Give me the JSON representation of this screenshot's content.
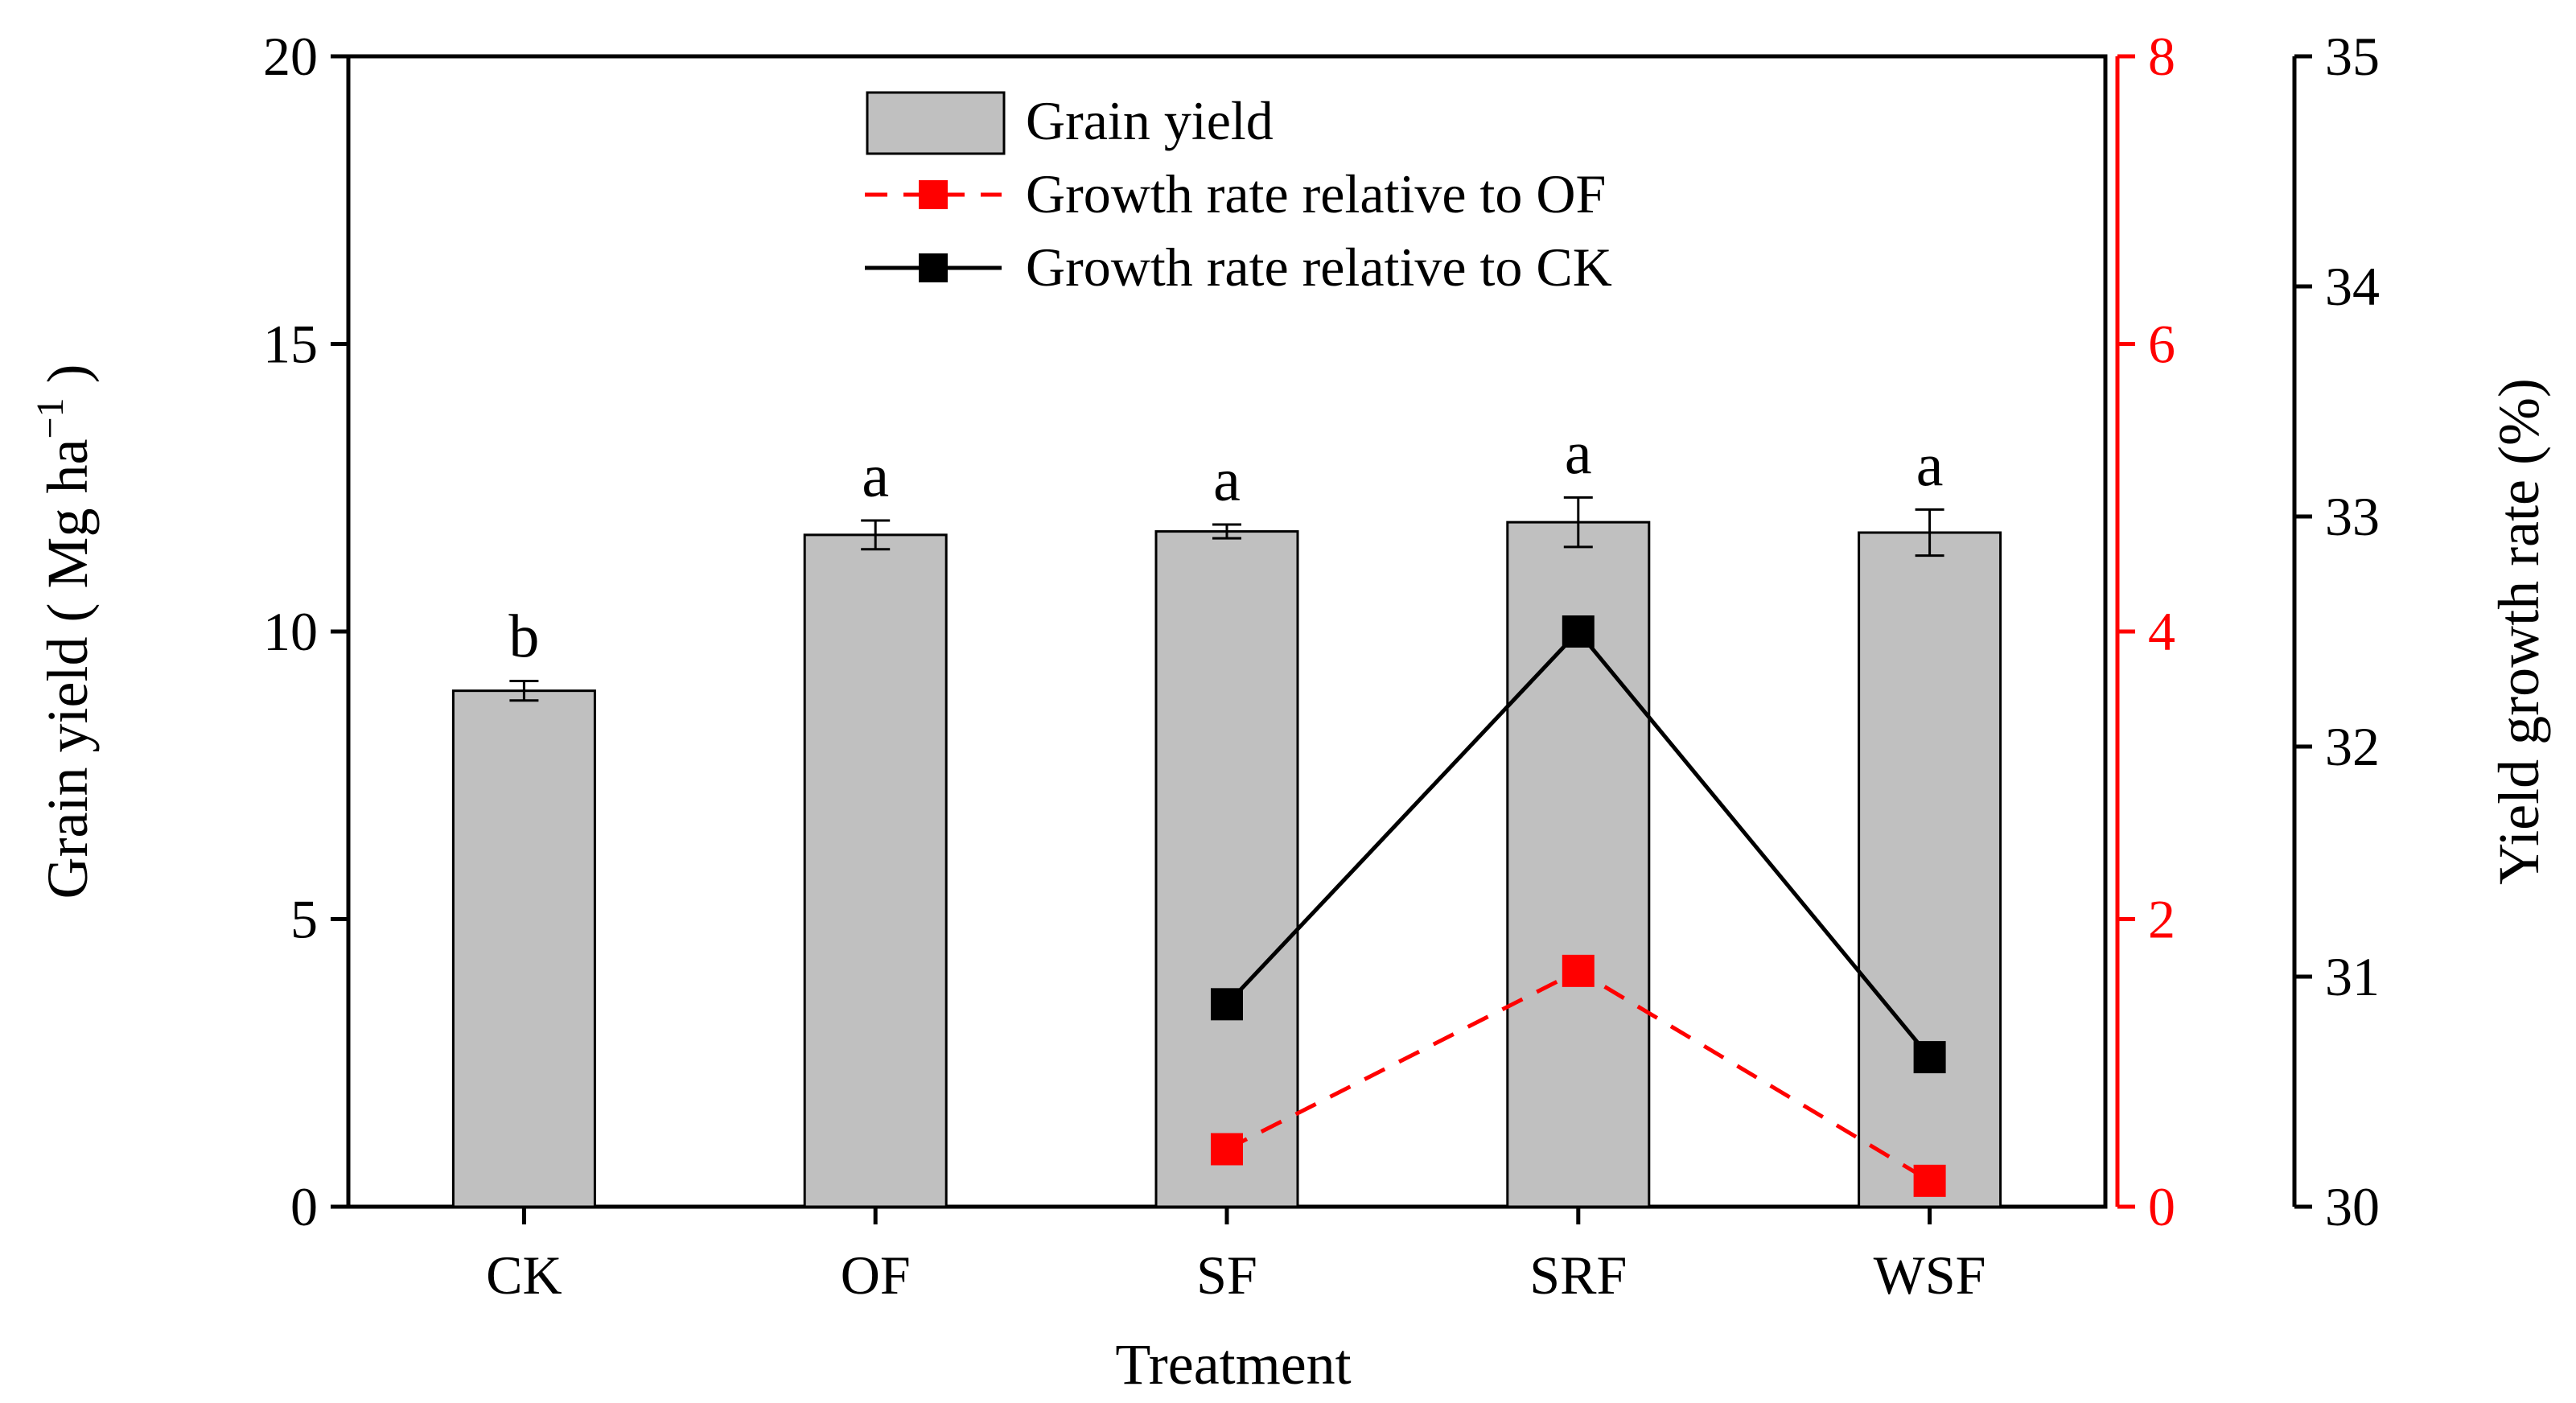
{
  "chart_data": {
    "type": "bar",
    "categories": [
      "CK",
      "OF",
      "SF",
      "SRF",
      "WSF"
    ],
    "xlabel": "Treatment",
    "bars": {
      "name": "Grain yield",
      "values": [
        8.97,
        11.68,
        11.74,
        11.9,
        11.72
      ],
      "errors": [
        0.17,
        0.25,
        0.12,
        0.43,
        0.4
      ],
      "significance": [
        "b",
        "a",
        "a",
        "a",
        "a"
      ],
      "color": "#c0c0c0"
    },
    "series": [
      {
        "name": "Growth rate relative to OF",
        "axis": "red-right",
        "values": [
          null,
          null,
          0.4,
          1.64,
          0.18
        ],
        "color": "#ff0000",
        "style": "dashed"
      },
      {
        "name": "Growth rate relative to CK",
        "axis": "black-right",
        "values": [
          null,
          null,
          30.88,
          32.5,
          30.65
        ],
        "color": "#000000",
        "style": "solid"
      }
    ],
    "left_axis": {
      "label_main": "Grain yield ( Mg ha",
      "label_sup": "−1",
      "label_end": " )",
      "ylim": [
        0,
        20
      ],
      "ticks": [
        "0",
        "5",
        "10",
        "15",
        "20"
      ]
    },
    "red_axis": {
      "ylim": [
        0,
        8
      ],
      "ticks": [
        "0",
        "2",
        "4",
        "6",
        "8"
      ],
      "color": "#ff0000"
    },
    "black_axis": {
      "label": "Yield  growth rate (%)",
      "ylim": [
        30,
        35
      ],
      "ticks": [
        "30",
        "31",
        "32",
        "33",
        "34",
        "35"
      ]
    },
    "legend": {
      "position": "top-center",
      "entries": [
        "Grain yield",
        "Growth rate relative to OF",
        "Growth rate relative to CK"
      ]
    }
  }
}
